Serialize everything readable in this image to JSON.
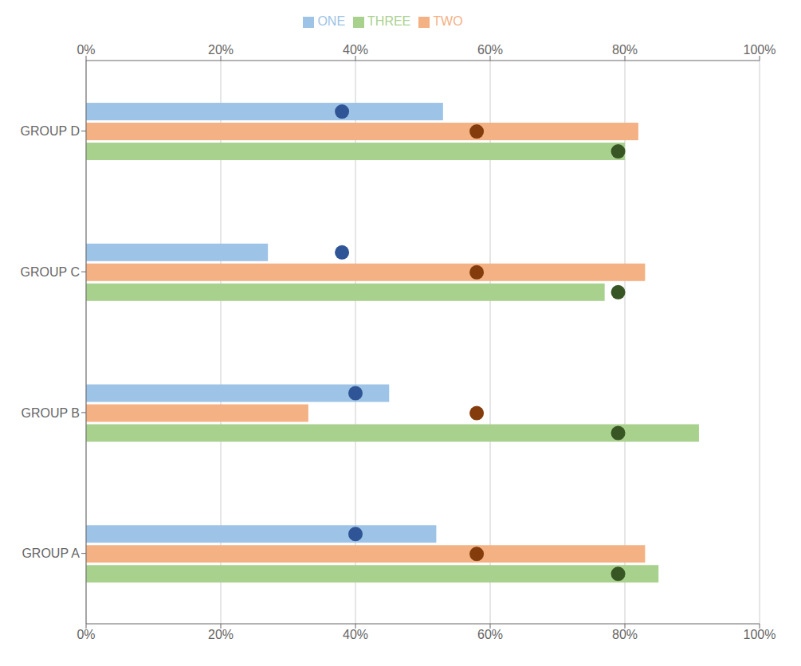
{
  "chart_data": {
    "type": "bar",
    "orientation": "horizontal",
    "categories": [
      "GROUP A",
      "GROUP B",
      "GROUP C",
      "GROUP D"
    ],
    "series": [
      {
        "name": "ONE",
        "color": "#9DC3E6",
        "values": [
          0.52,
          0.45,
          0.27,
          0.53
        ],
        "dots": {
          "color": "#2F5597",
          "values": [
            0.4,
            0.4,
            0.38,
            0.38
          ]
        }
      },
      {
        "name": "TWO",
        "color": "#F4B183",
        "values": [
          0.83,
          0.33,
          0.83,
          0.82
        ],
        "dots": {
          "color": "#843C0C",
          "values": [
            0.58,
            0.58,
            0.58,
            0.58
          ]
        }
      },
      {
        "name": "THREE",
        "color": "#A9D18E",
        "values": [
          0.85,
          0.91,
          0.77,
          0.8
        ],
        "dots": {
          "color": "#375623",
          "values": [
            0.79,
            0.79,
            0.79,
            0.79
          ]
        }
      }
    ],
    "xlim": [
      0,
      1.0
    ],
    "xticks": [
      {
        "value": 0,
        "label": "0%"
      },
      {
        "value": 0.2,
        "label": "20%"
      },
      {
        "value": 0.4,
        "label": "40%"
      },
      {
        "value": 0.6,
        "label": "60%"
      },
      {
        "value": 0.8,
        "label": "80%"
      },
      {
        "value": 1.0,
        "label": "100%"
      }
    ],
    "grid": true,
    "legend": "top"
  }
}
